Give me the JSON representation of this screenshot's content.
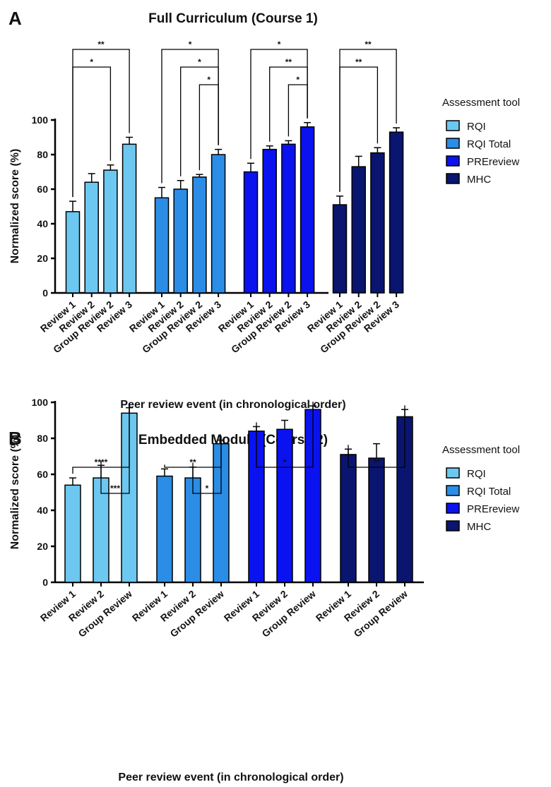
{
  "chart_data": [
    {
      "panel": "A",
      "type": "bar",
      "title": "Full Curriculum (Course 1)",
      "xlabel": "Peer review event (in chronological order)",
      "ylabel": "Normalized score (%)",
      "ylim": [
        0,
        100
      ],
      "yticks": [
        0,
        20,
        40,
        60,
        80,
        100
      ],
      "categories": [
        "Review 1",
        "Review 2",
        "Group Review 2",
        "Review 3"
      ],
      "legend_title": "Assessment tool",
      "legend_position": "right",
      "series": [
        {
          "name": "RQI",
          "color": "#6cc8f0",
          "values": [
            47,
            64,
            71,
            86
          ],
          "errors": [
            6,
            5,
            3,
            4
          ]
        },
        {
          "name": "RQI Total",
          "color": "#2b8de6",
          "values": [
            55,
            60,
            67,
            80
          ],
          "errors": [
            6,
            5,
            1.5,
            3
          ]
        },
        {
          "name": "PREreview",
          "color": "#0a12f0",
          "values": [
            70,
            83,
            86,
            96
          ],
          "errors": [
            5,
            2,
            2,
            2.5
          ]
        },
        {
          "name": "MHC",
          "color": "#0a1570",
          "values": [
            51,
            73,
            81,
            93
          ],
          "errors": [
            5,
            6,
            3,
            2.5
          ]
        }
      ],
      "significance": [
        {
          "series": 0,
          "from": 0,
          "to": 3,
          "label": "**"
        },
        {
          "series": 0,
          "from": 0,
          "to": 2,
          "label": "*"
        },
        {
          "series": 1,
          "from": 0,
          "to": 3,
          "label": "*"
        },
        {
          "series": 1,
          "from": 1,
          "to": 3,
          "label": "*"
        },
        {
          "series": 1,
          "from": 2,
          "to": 3,
          "label": "*"
        },
        {
          "series": 2,
          "from": 0,
          "to": 3,
          "label": "*"
        },
        {
          "series": 2,
          "from": 1,
          "to": 3,
          "label": "**"
        },
        {
          "series": 2,
          "from": 2,
          "to": 3,
          "label": "*"
        },
        {
          "series": 3,
          "from": 0,
          "to": 3,
          "label": "**"
        },
        {
          "series": 3,
          "from": 0,
          "to": 2,
          "label": "**"
        }
      ]
    },
    {
      "panel": "B",
      "type": "bar",
      "title": "Embedded Module (Course 2)",
      "xlabel": "Peer review event (in chronological order)",
      "ylabel": "Normalized score (%)",
      "ylim": [
        0,
        100
      ],
      "yticks": [
        0,
        20,
        40,
        60,
        80,
        100
      ],
      "categories": [
        "Review 1",
        "Review 2",
        "Group Review"
      ],
      "legend_title": "Assessment tool",
      "legend_position": "right",
      "series": [
        {
          "name": "RQI",
          "color": "#6cc8f0",
          "values": [
            54,
            58,
            94
          ],
          "errors": [
            4,
            7,
            3
          ]
        },
        {
          "name": "RQI Total",
          "color": "#2b8de6",
          "values": [
            59,
            58,
            77
          ],
          "errors": [
            4,
            6,
            2
          ]
        },
        {
          "name": "PREreview",
          "color": "#0a12f0",
          "values": [
            84,
            85,
            96
          ],
          "errors": [
            2.5,
            5,
            2
          ]
        },
        {
          "name": "MHC",
          "color": "#0a1570",
          "values": [
            71,
            69,
            92
          ],
          "errors": [
            3,
            8,
            4
          ]
        }
      ],
      "significance": [
        {
          "series": 0,
          "from": 0,
          "to": 2,
          "label": "****"
        },
        {
          "series": 0,
          "from": 1,
          "to": 2,
          "label": "***"
        },
        {
          "series": 1,
          "from": 0,
          "to": 2,
          "label": "**"
        },
        {
          "series": 1,
          "from": 1,
          "to": 2,
          "label": "*"
        },
        {
          "series": 2,
          "from": 0,
          "to": 2,
          "label": "*"
        },
        {
          "series": 3,
          "from": 0,
          "to": 2,
          "label": "**"
        }
      ]
    }
  ]
}
